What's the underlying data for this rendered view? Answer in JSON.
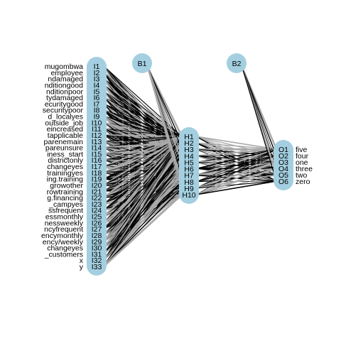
{
  "network": {
    "input_labels": [
      "mugombwa",
      "employee",
      "ndamaged",
      "nditiongood",
      "nditionpoor",
      "tydamaged",
      "ecuritygood",
      "securitypoor",
      "d_localyes",
      "outside_job",
      "eincreased",
      "tapplicable",
      "parenemain",
      "pareunsure",
      "iness_start",
      "districtonly",
      "changeyes",
      "trainingyes",
      "ing.training",
      "growother",
      "rowtraining",
      "g.financing",
      "_campyes",
      "ssfrequent",
      "essmonthly",
      "nessweekly",
      "ncyfrequent",
      "encymonthly",
      "ency/weekly",
      "changeyes",
      "_customers",
      "x",
      "y"
    ],
    "input_nodes": [
      "I1",
      "I2",
      "I3",
      "I4",
      "I5",
      "I6",
      "I7",
      "I8",
      "I9",
      "I10",
      "I11",
      "I12",
      "I13",
      "I14",
      "I15",
      "I16",
      "I17",
      "I18",
      "I19",
      "I20",
      "I21",
      "I22",
      "I23",
      "I24",
      "I25",
      "I26",
      "I27",
      "I28",
      "I29",
      "I30",
      "I31",
      "I32",
      "I33"
    ],
    "hidden_nodes": [
      "H1",
      "H2",
      "H3",
      "H4",
      "H5",
      "H6",
      "H7",
      "H8",
      "H9",
      "H10"
    ],
    "output_nodes": [
      "O1",
      "O2",
      "O3",
      "O4",
      "O5",
      "O6"
    ],
    "output_labels": [
      "five",
      "four",
      "one",
      "three",
      "two",
      "zero"
    ],
    "bias_nodes": [
      "B1",
      "B2"
    ],
    "node_color": "#a3cfe0",
    "edge_colors": [
      "#000000",
      "#a9a9a9"
    ]
  }
}
